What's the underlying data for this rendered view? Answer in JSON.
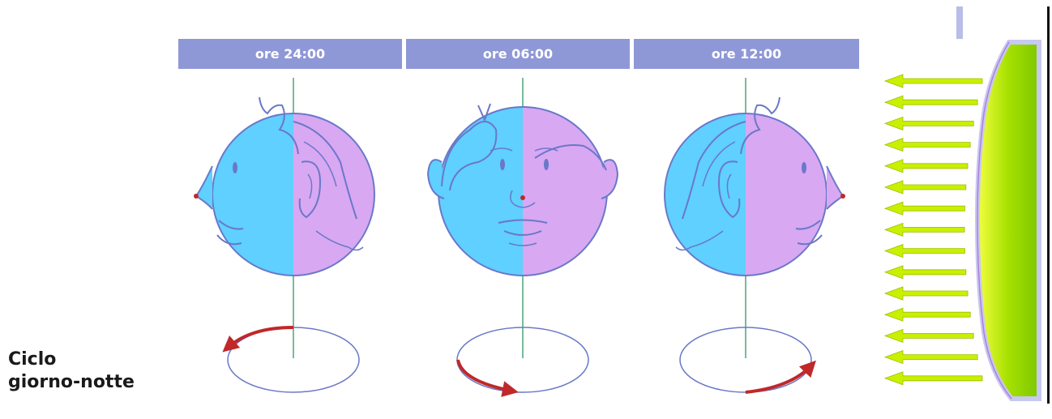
{
  "headers": [
    "ore 24:00",
    "ore 06:00",
    "ore 12:00"
  ],
  "caption": {
    "line1": "Ciclo",
    "line2": "giorno-notte"
  },
  "colors": {
    "header_bg": "#8f98d6",
    "day_side": "#5fd0ff",
    "night_side": "#d8a8f2",
    "outline": "#6a78c8",
    "arrow_red": "#c0282a",
    "axis_green": "#4aa57a",
    "sun_rays": "#c8f000",
    "sun_body": "#9edc00"
  },
  "icons": [
    "head-profile-left-icon",
    "head-front-icon",
    "head-profile-right-icon",
    "rotation-arrow-icon",
    "sun-rays-icon"
  ]
}
